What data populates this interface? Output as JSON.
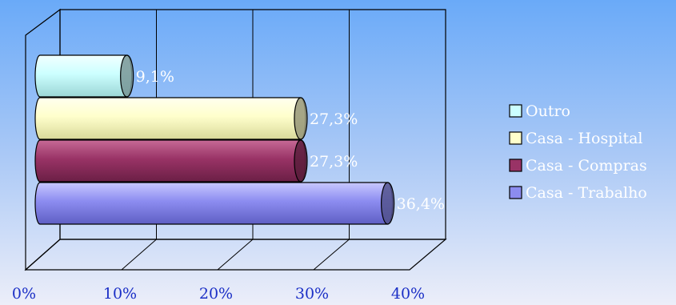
{
  "chart_data": {
    "type": "bar",
    "orientation": "horizontal",
    "style": "3d-cylinder",
    "categories": [
      "Casa - Trabalho",
      "Casa - Compras",
      "Casa - Hospital",
      "Outro"
    ],
    "values": [
      36.4,
      27.3,
      27.3,
      9.1
    ],
    "data_labels": [
      "36,4%",
      "27,3%",
      "27,3%",
      "9,1%"
    ],
    "colors": [
      "#8c8cf0",
      "#993366",
      "#ffffcc",
      "#ccffff"
    ],
    "xlim": [
      0,
      40
    ],
    "x_ticks": [
      0,
      10,
      20,
      30,
      40
    ],
    "x_tick_labels": [
      "0%",
      "10%",
      "20%",
      "30%",
      "40%"
    ],
    "grid": true,
    "legend_position": "right",
    "legend": [
      "Outro",
      "Casa - Hospital",
      "Casa - Compras",
      "Casa - Trabalho"
    ],
    "legend_colors": [
      "#ccffff",
      "#ffffcc",
      "#993366",
      "#8c8cf0"
    ],
    "title": "",
    "xlabel": "",
    "ylabel": ""
  }
}
